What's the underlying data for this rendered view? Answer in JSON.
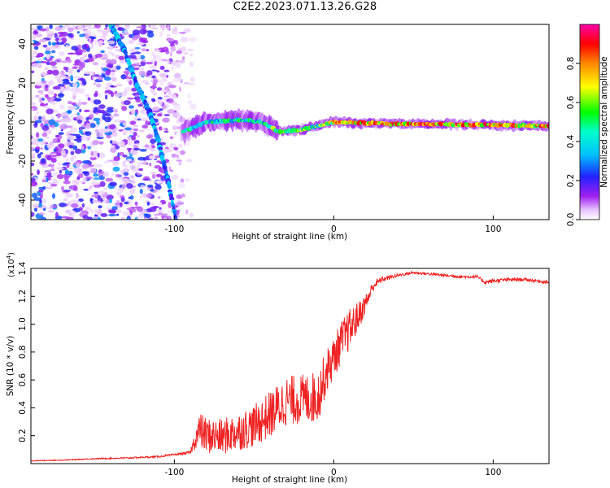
{
  "figure": {
    "title": "C2E2.2023.071.13.26.G28"
  },
  "chart_data": [
    {
      "type": "heatmap",
      "title": "C2E2.2023.071.13.26.G28",
      "xlabel": "Height of straight line (km)",
      "ylabel": "Frequency (Hz)",
      "xlim": [
        -190,
        135
      ],
      "ylim": [
        -50,
        50
      ],
      "xticks": [
        -100,
        0,
        100
      ],
      "xtick_labels": [
        "-100",
        "0",
        "100"
      ],
      "yticks": [
        -40,
        -20,
        0,
        20,
        40
      ],
      "ytick_labels": [
        "-40",
        "-20",
        "0",
        "20",
        "40"
      ],
      "grid": false,
      "colorbar": {
        "label": "Normalized spectral amplitude",
        "range": [
          0,
          1
        ],
        "ticks": [
          0.0,
          0.2,
          0.4,
          0.6,
          0.8
        ],
        "tick_labels": [
          "0.0",
          "0.2",
          "0.4",
          "0.6",
          "0.8"
        ],
        "colormap": "rainbow (white-violet-blue-cyan-green-yellow-red-magenta)"
      },
      "features": [
        {
          "kind": "diffuse_noise",
          "x_range": [
            -190,
            -95
          ],
          "y_range": [
            -50,
            50
          ],
          "amplitude": 0.15
        },
        {
          "kind": "chirp_line",
          "points": [
            [
              -140,
              50
            ],
            [
              -132,
              38
            ],
            [
              -124,
              20
            ],
            [
              -116,
              6
            ],
            [
              -110,
              -10
            ],
            [
              -104,
              -30
            ],
            [
              -99,
              -50
            ]
          ],
          "amplitude": 0.3
        },
        {
          "kind": "tone_ridge",
          "points": [
            [
              -95,
              -5
            ],
            [
              -80,
              0
            ],
            [
              -60,
              1
            ],
            [
              -45,
              0
            ],
            [
              -35,
              -5
            ],
            [
              -20,
              -4
            ],
            [
              -10,
              -2
            ],
            [
              0,
              0
            ],
            [
              40,
              -1
            ],
            [
              100,
              -1.5
            ],
            [
              135,
              -2
            ]
          ],
          "amplitude": 0.8
        }
      ]
    },
    {
      "type": "line",
      "xlabel": "Height of straight line (km)",
      "ylabel": "SNR (10 * v/v)",
      "y_multiplier_label": "(x10",
      "y_multiplier_exponent": "4",
      "xlim": [
        -190,
        135
      ],
      "ylim": [
        0,
        14000
      ],
      "xticks": [
        -100,
        0,
        100
      ],
      "xtick_labels": [
        "-100",
        "0",
        "100"
      ],
      "yticks": [
        2000,
        4000,
        6000,
        8000,
        10000,
        12000,
        14000
      ],
      "ytick_labels": [
        "0.2",
        "0.4",
        "0.6",
        "0.8",
        "1.0",
        "1.2",
        "1.4"
      ],
      "grid": false,
      "series": [
        {
          "color": "#ee2222",
          "x": [
            -190,
            -170,
            -150,
            -130,
            -110,
            -96,
            -90,
            -86,
            -84,
            -80,
            -70,
            -60,
            -50,
            -40,
            -30,
            -20,
            -10,
            -5,
            0,
            5,
            10,
            15,
            20,
            25,
            30,
            40,
            50,
            60,
            70,
            80,
            90,
            95,
            100,
            110,
            120,
            135
          ],
          "y": [
            200,
            250,
            350,
            400,
            500,
            700,
            800,
            2000,
            2400,
            2000,
            1900,
            2300,
            2700,
            3500,
            4500,
            4600,
            4800,
            6500,
            7600,
            8800,
            9600,
            10500,
            11500,
            12800,
            13200,
            13500,
            13700,
            13600,
            13500,
            13400,
            13400,
            13000,
            13100,
            13200,
            13200,
            13000
          ],
          "noise": [
            30,
            30,
            40,
            50,
            60,
            80,
            100,
            900,
            1300,
            1300,
            1300,
            1400,
            1500,
            1700,
            1800,
            1800,
            1900,
            1600,
            1500,
            1500,
            1500,
            1100,
            700,
            400,
            200,
            120,
            100,
            100,
            100,
            100,
            100,
            150,
            150,
            120,
            120,
            120
          ]
        }
      ]
    }
  ]
}
